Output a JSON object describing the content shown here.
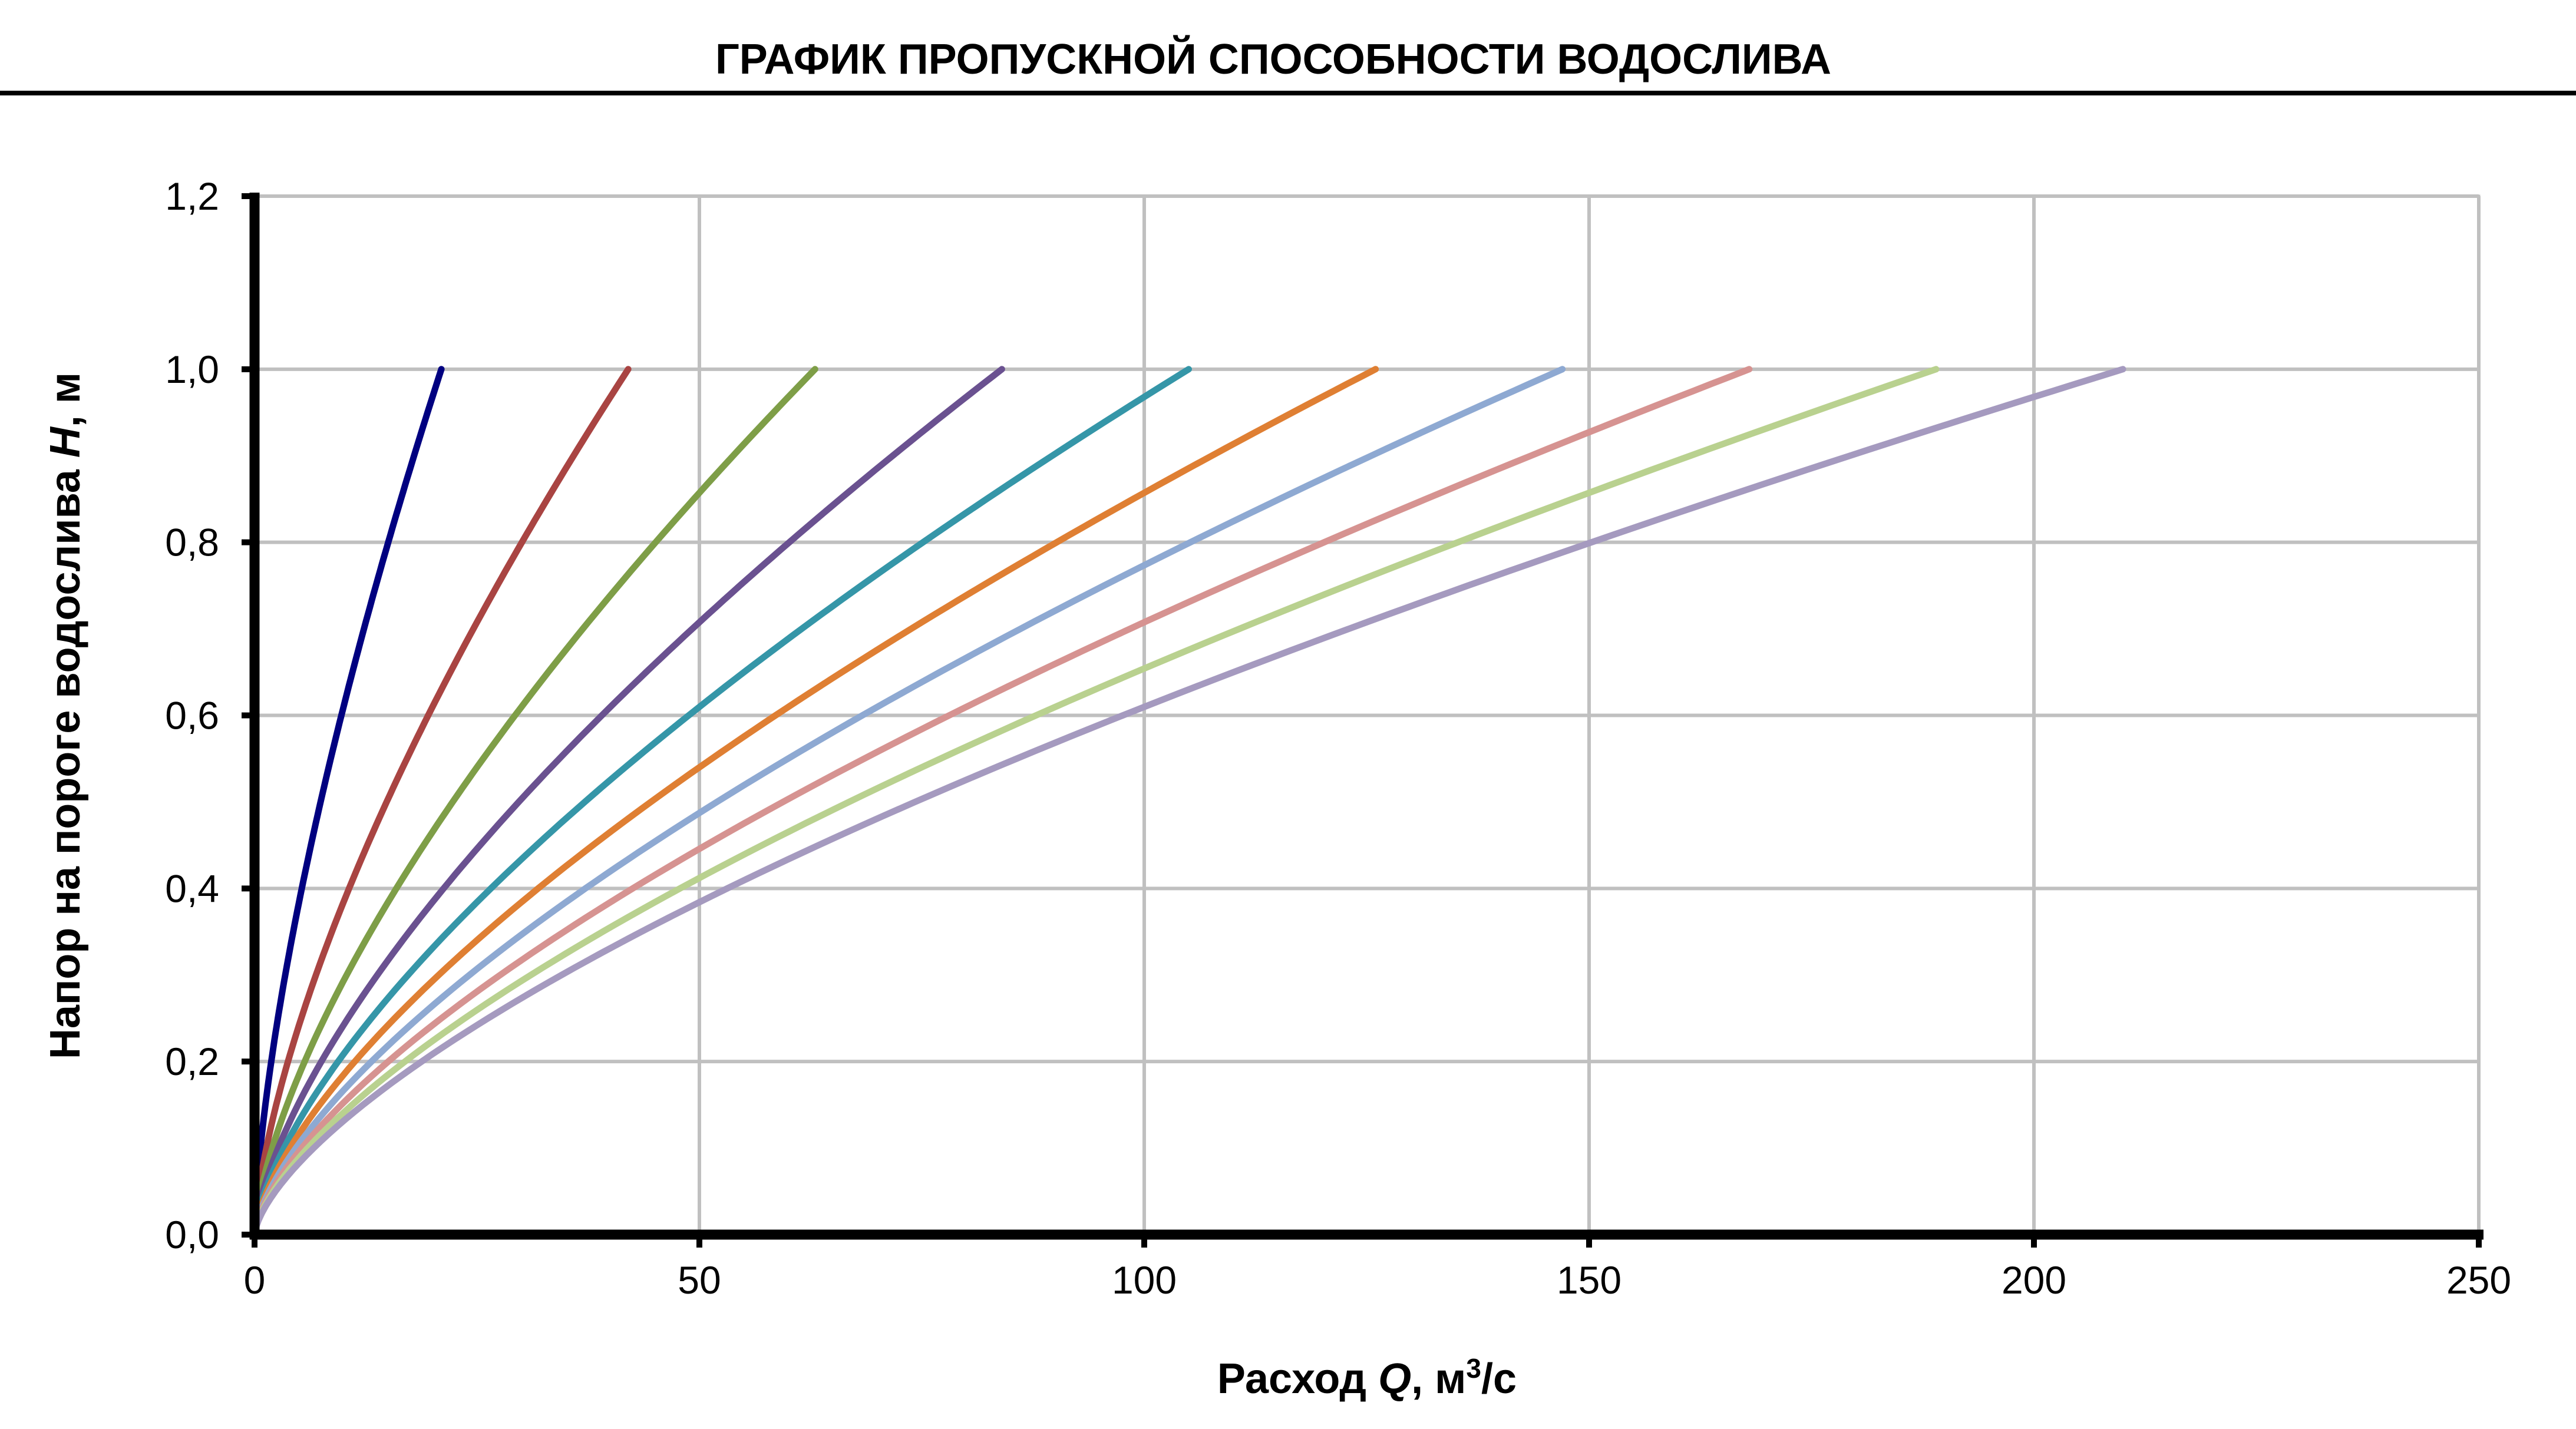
{
  "chart_data": {
    "type": "line",
    "title": "ГРАФИК ПРОПУСКНОЙ СПОСОБНОСТИ ВОДОСЛИВА",
    "xlabel": {
      "prefix": "Расход ",
      "var": "Q",
      "unit": ", м",
      "sup": "3",
      "suffix": "/с"
    },
    "ylabel": {
      "prefix": "Напор на пороге водослива ",
      "var": "H",
      "suffix": ", м"
    },
    "xlim": [
      0,
      250
    ],
    "ylim": [
      0,
      1.2
    ],
    "x_ticks": [
      "0",
      "50",
      "100",
      "150",
      "200",
      "250"
    ],
    "y_ticks": [
      "0,0",
      "0,2",
      "0,4",
      "0,6",
      "0,8",
      "1,0",
      "1,2"
    ],
    "grid": true,
    "legend": "none",
    "relation": "Q = Q_max · H^1.5",
    "series": [
      {
        "q_at_h1": 21,
        "color": "#000080"
      },
      {
        "q_at_h1": 42,
        "color": "#A94442"
      },
      {
        "q_at_h1": 63,
        "color": "#7E9E47"
      },
      {
        "q_at_h1": 84,
        "color": "#6A5190"
      },
      {
        "q_at_h1": 105,
        "color": "#3596A8"
      },
      {
        "q_at_h1": 126,
        "color": "#DF7F33"
      },
      {
        "q_at_h1": 147,
        "color": "#8EA9D2"
      },
      {
        "q_at_h1": 168,
        "color": "#D69391"
      },
      {
        "q_at_h1": 189,
        "color": "#B9D18F"
      },
      {
        "q_at_h1": 210,
        "color": "#A59ABF"
      }
    ]
  }
}
